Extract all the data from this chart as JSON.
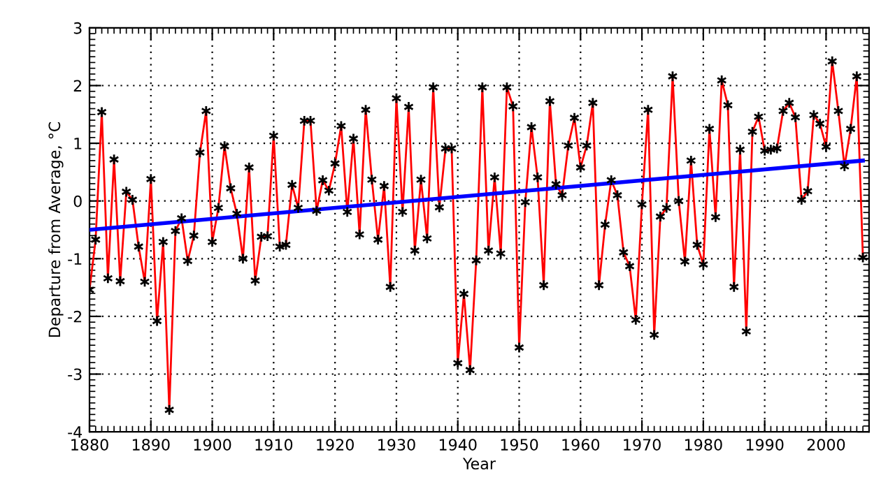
{
  "chart_data": {
    "type": "line",
    "xlabel": "Year",
    "ylabel": "Departure from Average, °C",
    "xlim": [
      1880,
      2007
    ],
    "xticks": [
      1880,
      1890,
      1900,
      1910,
      1920,
      1930,
      1940,
      1950,
      1960,
      1970,
      1980,
      1990,
      2000
    ],
    "ylim": [
      -4,
      3
    ],
    "yticks": [
      -4,
      -3,
      -2,
      -1,
      0,
      1,
      2,
      3
    ],
    "grid": true,
    "series": [
      {
        "color": "#ff0000",
        "marker": "cross",
        "x": [
          1880,
          1881,
          1882,
          1883,
          1884,
          1885,
          1886,
          1887,
          1888,
          1889,
          1890,
          1891,
          1892,
          1893,
          1894,
          1895,
          1896,
          1897,
          1898,
          1899,
          1900,
          1901,
          1902,
          1903,
          1904,
          1905,
          1906,
          1907,
          1908,
          1909,
          1910,
          1911,
          1912,
          1913,
          1914,
          1915,
          1916,
          1917,
          1918,
          1919,
          1920,
          1921,
          1922,
          1923,
          1924,
          1925,
          1926,
          1927,
          1928,
          1929,
          1930,
          1931,
          1932,
          1933,
          1934,
          1935,
          1936,
          1937,
          1938,
          1939,
          1940,
          1941,
          1942,
          1943,
          1944,
          1945,
          1946,
          1947,
          1948,
          1949,
          1950,
          1951,
          1952,
          1953,
          1954,
          1955,
          1956,
          1957,
          1958,
          1959,
          1960,
          1961,
          1962,
          1963,
          1964,
          1965,
          1966,
          1967,
          1968,
          1969,
          1970,
          1971,
          1972,
          1973,
          1974,
          1975,
          1976,
          1977,
          1978,
          1979,
          1980,
          1981,
          1982,
          1983,
          1984,
          1985,
          1986,
          1987,
          1988,
          1989,
          1990,
          1991,
          1992,
          1993,
          1994,
          1995,
          1996,
          1997,
          1998,
          1999,
          2000,
          2001,
          2002,
          2003,
          2004,
          2005,
          2006
        ],
        "values": [
          -1.54,
          -0.67,
          1.54,
          -1.34,
          0.72,
          -1.39,
          0.16,
          0.02,
          -0.79,
          -1.4,
          0.38,
          -2.08,
          -0.71,
          -3.62,
          -0.52,
          -0.3,
          -1.04,
          -0.6,
          0.84,
          1.56,
          -0.71,
          -0.12,
          0.95,
          0.22,
          -0.22,
          -1.0,
          0.58,
          -1.38,
          -0.62,
          -0.61,
          1.13,
          -0.79,
          -0.76,
          0.28,
          -0.12,
          1.39,
          1.39,
          -0.17,
          0.36,
          0.18,
          0.65,
          1.3,
          -0.19,
          1.08,
          -0.58,
          1.58,
          0.37,
          -0.67,
          0.26,
          -1.49,
          1.78,
          -0.19,
          1.63,
          -0.86,
          0.37,
          -0.65,
          1.97,
          -0.11,
          0.91,
          0.91,
          -2.81,
          -1.61,
          -2.93,
          -1.03,
          1.97,
          -0.86,
          0.41,
          -0.91,
          1.97,
          1.64,
          -2.54,
          -0.02,
          1.28,
          0.41,
          -1.46,
          1.73,
          0.29,
          0.1,
          0.96,
          1.44,
          0.58,
          0.96,
          1.7,
          -1.46,
          -0.41,
          0.36,
          0.1,
          -0.89,
          -1.13,
          -2.06,
          -0.06,
          1.58,
          -2.32,
          -0.27,
          -0.12,
          2.16,
          0.0,
          -1.05,
          0.7,
          -0.76,
          -1.1,
          1.25,
          -0.28,
          2.09,
          1.66,
          -1.49,
          0.89,
          -2.26,
          1.2,
          1.46,
          0.87,
          0.89,
          0.91,
          1.56,
          1.7,
          1.45,
          0.02,
          0.17,
          1.49,
          1.34,
          0.94,
          2.42,
          1.56,
          0.6,
          1.25,
          2.16,
          -0.98
        ]
      },
      {
        "color": "#0000ff",
        "x": [
          1880,
          2006
        ],
        "values": [
          -0.5,
          0.7
        ]
      }
    ]
  }
}
